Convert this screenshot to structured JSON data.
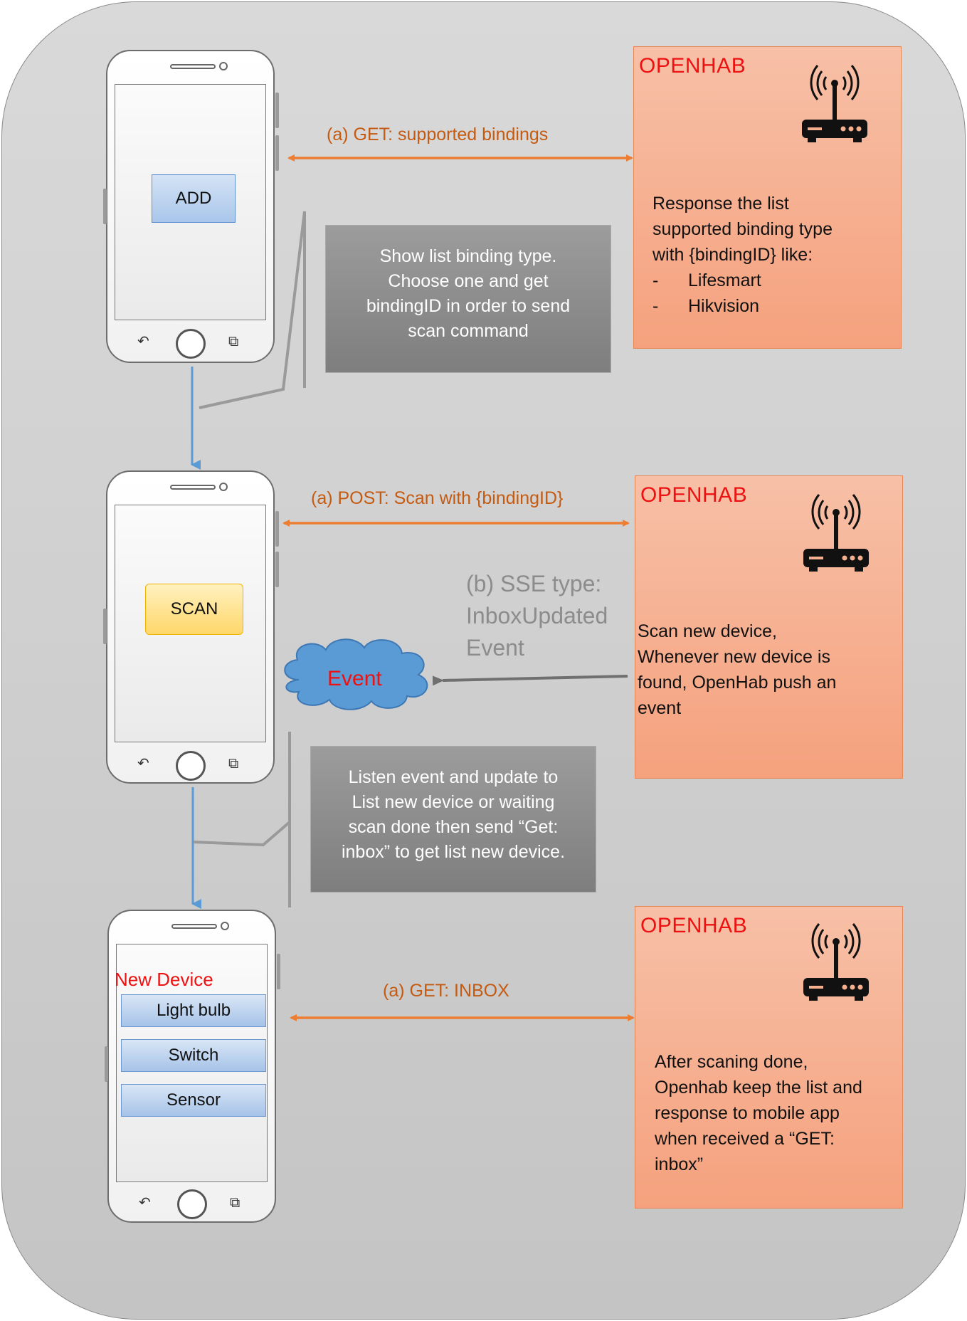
{
  "colors": {
    "accent_orange": "#ed7d31",
    "arrow_label": "#c55a11",
    "flow_blue": "#5b9bd5",
    "openhab_red": "#ee1111",
    "note_gray": "#8a8a8a",
    "event_cloud": "#5b9bd5"
  },
  "steps": {
    "step1": {
      "phone_button": "ADD",
      "arrow_label": "(a) GET: supported bindings",
      "openhab": {
        "title": "OPENHAB",
        "icon": "wifi-router-icon",
        "text_lines": [
          "Response the list",
          "supported binding type",
          "with {bindingID} like:"
        ],
        "list_items": [
          "Lifesmart",
          "Hikvision"
        ],
        "list_marker": "-"
      },
      "note": {
        "lines": [
          "Show list binding type.",
          "Choose one and get",
          "bindingID in order to send",
          "scan command"
        ]
      }
    },
    "step2": {
      "phone_button": "SCAN",
      "arrow_label": "(a) POST: Scan with {bindingID}",
      "sse_label_lines": [
        "(b) SSE type:",
        "InboxUpdated",
        "Event"
      ],
      "event_cloud_label": "Event",
      "openhab": {
        "title": "OPENHAB",
        "icon": "wifi-router-icon",
        "text_lines": [
          "Scan new device,",
          "Whenever new device is",
          "found, OpenHab push an",
          "event"
        ]
      },
      "note": {
        "lines": [
          "Listen event and update to",
          "List new device or waiting",
          "scan done then send “Get:",
          "inbox” to get list new device."
        ]
      }
    },
    "step3": {
      "screen_title": "New Device",
      "device_list": [
        "Light bulb",
        "Switch",
        "Sensor"
      ],
      "arrow_label": "(a) GET: INBOX",
      "openhab": {
        "title": "OPENHAB",
        "icon": "wifi-router-icon",
        "text_lines": [
          "After scaning done,",
          "Openhab keep the list and",
          "response to mobile app",
          "when received a “GET:",
          "inbox”"
        ]
      }
    }
  }
}
